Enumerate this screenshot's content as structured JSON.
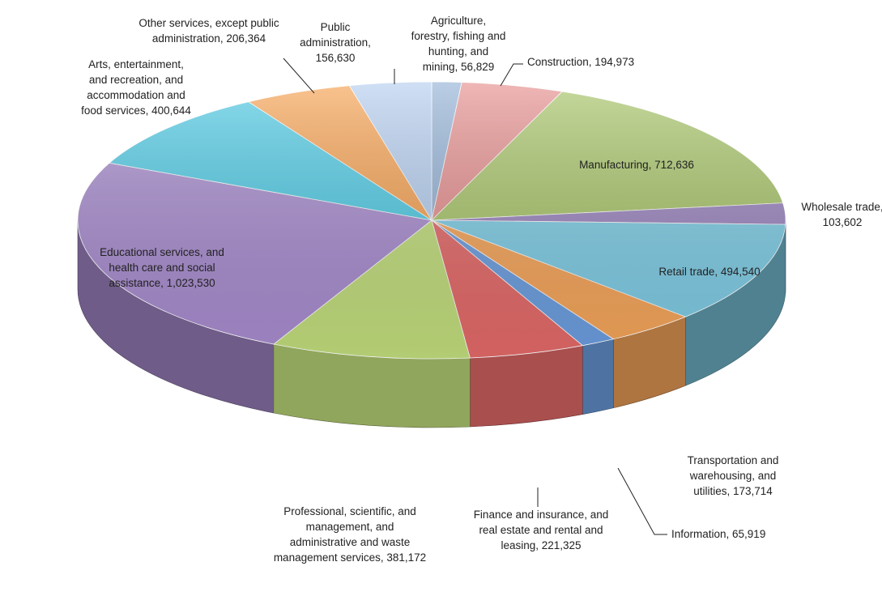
{
  "chart_data": {
    "type": "pie",
    "title": "",
    "categories": [
      "Agriculture, forestry, fishing and hunting, and mining",
      "Construction",
      "Manufacturing",
      "Wholesale trade",
      "Retail trade",
      "Transportation and warehousing, and utilities",
      "Information",
      "Finance and insurance, and real estate and rental and leasing",
      "Professional, scientific, and management, and administrative and waste management services",
      "Educational services, and health care and social assistance",
      "Arts, entertainment, and recreation, and accommodation and food services",
      "Other services, except public administration",
      "Public administration"
    ],
    "values": [
      56829,
      194973,
      712636,
      103602,
      494540,
      173714,
      65919,
      221325,
      381172,
      1023530,
      400644,
      206364,
      156630
    ],
    "colors": [
      "#95b3d7",
      "#e6908f",
      "#a9c66a",
      "#9c85c0",
      "#7fcde6",
      "#f6a55a",
      "#6c9ee0",
      "#e46a69",
      "#c2de7d",
      "#a98dd0",
      "#4fcbe5",
      "#f7a353",
      "#b6cff0"
    ],
    "labels": [
      [
        "Agriculture,",
        "forestry, fishing and",
        "hunting, and",
        "mining, 56,829"
      ],
      [
        "Construction, 194,973"
      ],
      [
        "Manufacturing, 712,636"
      ],
      [
        "Wholesale trade,",
        "103,602"
      ],
      [
        "Retail trade, 494,540"
      ],
      [
        "Transportation and",
        "warehousing, and",
        "utilities, 173,714"
      ],
      [
        "Information, 65,919"
      ],
      [
        "Finance and insurance, and",
        "real estate and rental and",
        "leasing, 221,325"
      ],
      [
        "Professional, scientific, and",
        "management, and",
        "administrative and waste",
        "management services, 381,172"
      ],
      [
        "Educational services, and",
        "health care and social",
        "assistance, 1,023,530"
      ],
      [
        "Arts, entertainment,",
        "and recreation, and",
        "accommodation and",
        "food services, 400,644"
      ],
      [
        "Other services, except public",
        "administration, 206,364"
      ],
      [
        "Public",
        "administration,",
        "156,630"
      ]
    ],
    "legend": "none",
    "style": "3d-exploded-none"
  }
}
